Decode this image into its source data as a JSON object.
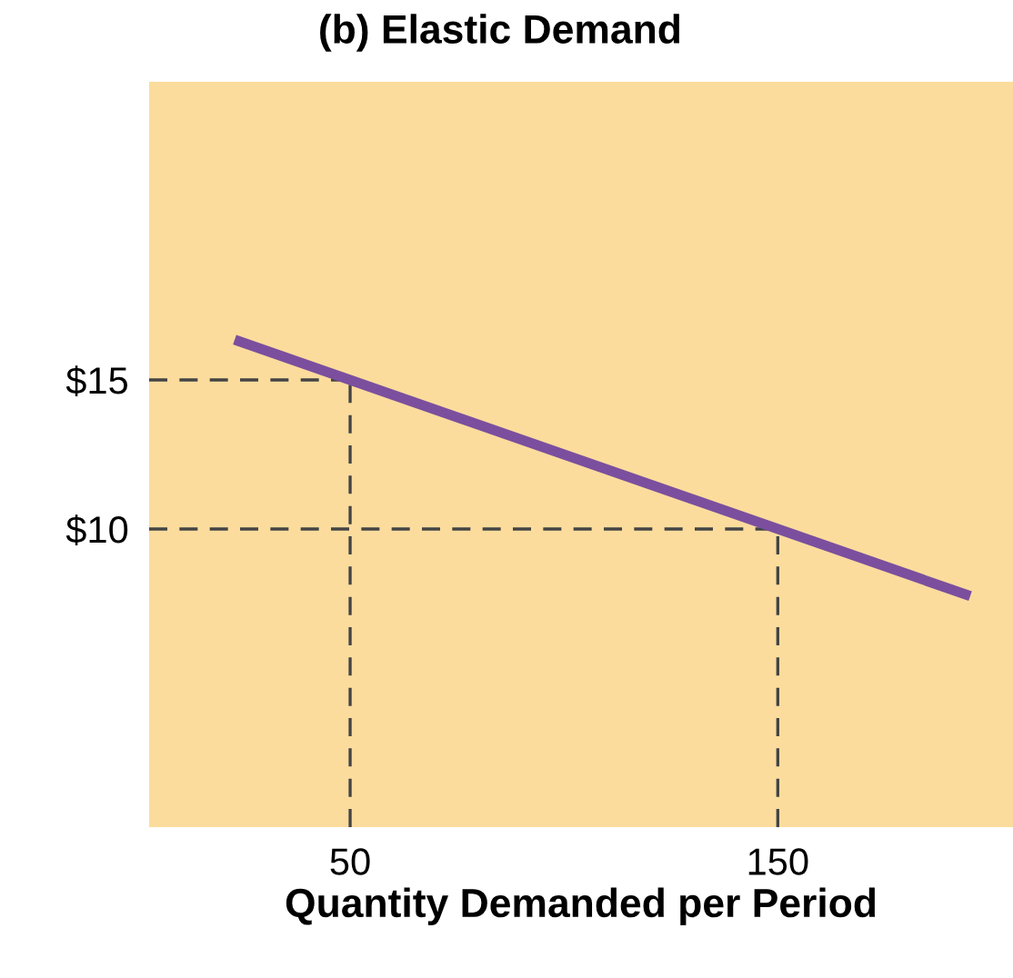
{
  "chart_data": {
    "type": "line",
    "title": "(b) Elastic Demand",
    "xlabel": "Quantity Demanded per Period",
    "xlim": [
      3,
      205
    ],
    "ylim": [
      0,
      25
    ],
    "xticks": [
      50,
      150
    ],
    "yticks": [
      {
        "value": 15,
        "label": "$15"
      },
      {
        "value": 10,
        "label": "$10"
      }
    ],
    "series": [
      {
        "color": "#7b4f9e",
        "x": [
          23,
          195
        ],
        "values": [
          16.35,
          7.75
        ]
      }
    ],
    "ref_lines": [
      {
        "axis": "x",
        "value": 50,
        "line_style": "dashed",
        "color": "#444444"
      },
      {
        "axis": "x",
        "value": 150,
        "line_style": "dashed",
        "color": "#444444"
      },
      {
        "axis": "y",
        "value": 15,
        "line_style": "dashed",
        "color": "#444444"
      },
      {
        "axis": "y",
        "value": 10,
        "line_style": "dashed",
        "color": "#444444"
      }
    ],
    "grid": false,
    "legend": false
  }
}
